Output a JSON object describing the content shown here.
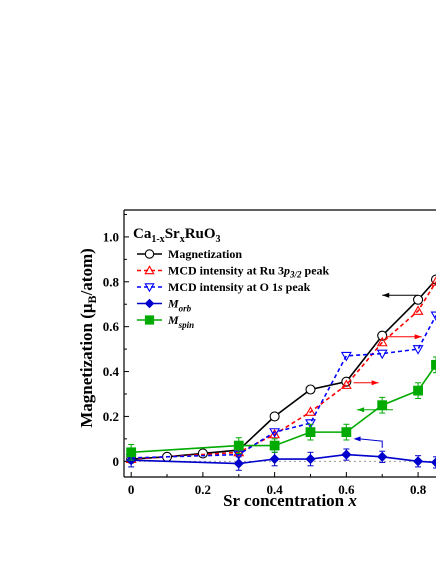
{
  "chart_data": {
    "type": "line",
    "title": "Ca1-xSrxRuO3",
    "title_parts": {
      "base": "Ca",
      "sub1": "1-x",
      "mid": "Sr",
      "sub2": "x",
      "tail": "RuO",
      "sub3": "3"
    },
    "xlabel": "Sr concentration x",
    "xlabel_parts": {
      "text": "Sr concentration ",
      "var": "x"
    },
    "ylabel": "Magnetization (μB/atom)",
    "ylabel_parts": {
      "pre": "Magnetization (μ",
      "sub": "B",
      "post": "/atom)"
    },
    "xlim": [
      -0.02,
      0.85
    ],
    "ylim": [
      -0.07,
      1.12
    ],
    "xticks": [
      "0",
      "0.2",
      "0.4",
      "0.6",
      "0.8"
    ],
    "xtick_values": [
      0,
      0.2,
      0.4,
      0.6,
      0.8
    ],
    "yticks": [
      "0",
      "0.2",
      "0.4",
      "0.6",
      "0.8",
      "1.0"
    ],
    "ytick_values": [
      0,
      0.2,
      0.4,
      0.6,
      0.8,
      1.0
    ],
    "grid": false,
    "legend_position": "top-left",
    "series": [
      {
        "name": "Magnetization",
        "legend": {
          "text": "Magnetization"
        },
        "color": "#000000",
        "dash": "",
        "marker": "circle-open",
        "x": [
          0,
          0.1,
          0.2,
          0.3,
          0.4,
          0.5,
          0.6,
          0.7,
          0.8,
          0.85
        ],
        "y": [
          0.01,
          0.02,
          0.035,
          0.05,
          0.2,
          0.32,
          0.355,
          0.56,
          0.72,
          0.81
        ]
      },
      {
        "name": "MCD intensity at Ru 3p3/2 peak",
        "legend": {
          "text": "MCD intensity at Ru 3",
          "em": "p",
          "sub": "3/2",
          "tail": " peak"
        },
        "color": "#ff0000",
        "dash": "4,3",
        "marker": "triangle-up-open",
        "x": [
          0,
          0.3,
          0.4,
          0.5,
          0.6,
          0.7,
          0.8,
          0.85
        ],
        "y": [
          0.01,
          0.04,
          0.12,
          0.22,
          0.34,
          0.53,
          0.67,
          0.8
        ]
      },
      {
        "name": "MCD intensity at O 1s peak",
        "legend": {
          "text": "MCD intensity at O 1",
          "em": "s",
          "tail": " peak"
        },
        "color": "#0000ff",
        "dash": "4,3",
        "marker": "triangle-down-open",
        "x": [
          0,
          0.3,
          0.4,
          0.5,
          0.6,
          0.7,
          0.8,
          0.85
        ],
        "y": [
          0.015,
          0.03,
          0.13,
          0.17,
          0.47,
          0.48,
          0.5,
          0.65
        ]
      },
      {
        "name": "Morb",
        "legend": {
          "text": "M",
          "sub": "orb"
        },
        "color": "#0000cc",
        "dash": "",
        "marker": "diamond-filled",
        "x": [
          0,
          0.3,
          0.4,
          0.5,
          0.6,
          0.7,
          0.8,
          0.85
        ],
        "y": [
          0.005,
          -0.01,
          0.01,
          0.01,
          0.03,
          0.02,
          0.0,
          -0.005
        ],
        "err": [
          0.03,
          0.03,
          0.03,
          0.03,
          0.025,
          0.025,
          0.025,
          0.025
        ]
      },
      {
        "name": "Mspin",
        "legend": {
          "text": "M",
          "sub": "spin"
        },
        "color": "#00aa00",
        "dash": "",
        "marker": "square-filled",
        "x": [
          0,
          0.3,
          0.4,
          0.5,
          0.6,
          0.7,
          0.8,
          0.85
        ],
        "y": [
          0.04,
          0.07,
          0.07,
          0.13,
          0.13,
          0.25,
          0.315,
          0.43
        ],
        "err": [
          0.035,
          0.035,
          0.03,
          0.035,
          0.035,
          0.035,
          0.035,
          0.035
        ]
      }
    ],
    "annotations": [
      {
        "type": "arrow",
        "color": "#000000",
        "x1": 0.8,
        "y1": 0.74,
        "x2": 0.7,
        "y2": 0.74
      },
      {
        "type": "arrow",
        "color": "#ff0000",
        "x1": 0.71,
        "y1": 0.555,
        "x2": 0.81,
        "y2": 0.555
      },
      {
        "type": "arrow",
        "color": "#ff0000",
        "x1": 0.62,
        "y1": 0.35,
        "x2": 0.69,
        "y2": 0.35
      },
      {
        "type": "arrow",
        "color": "#00aa00",
        "x1": 0.73,
        "y1": 0.23,
        "x2": 0.63,
        "y2": 0.23
      },
      {
        "type": "arrow-hook",
        "color": "#0000cc",
        "x1": 0.7,
        "y1": 0.09,
        "x2": 0.62,
        "y2": 0.1
      }
    ],
    "reference_line": {
      "y": 0,
      "color": "#888888",
      "dash": "2,3"
    }
  }
}
